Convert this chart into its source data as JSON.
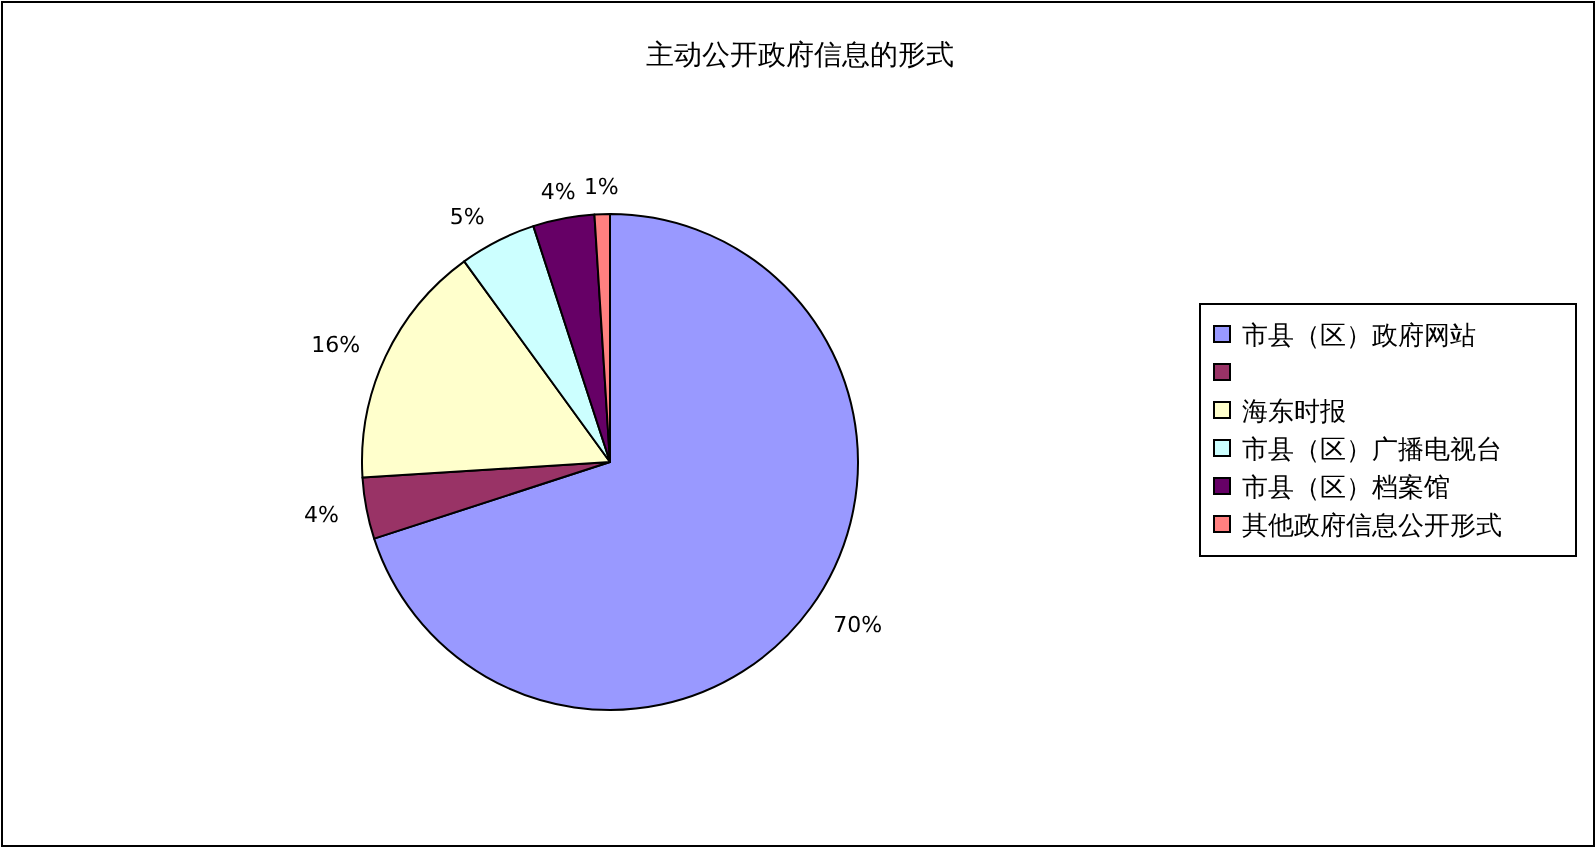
{
  "chart_data": {
    "type": "pie",
    "title": "主动公开政府信息的形式",
    "categories": [
      "市县（区）政府网站",
      null,
      "海东时报",
      "市县（区）广播电视台",
      "市县（区）档案馆",
      "其他政府信息公开形式"
    ],
    "values": [
      70,
      4,
      16,
      5,
      4,
      1
    ],
    "colors": [
      "#9999ff",
      "#993366",
      "#ffffcc",
      "#ccffff",
      "#660066",
      "#ff8080"
    ],
    "value_labels": [
      "70%",
      "4%",
      "16%",
      "5%",
      "4%",
      "1%"
    ],
    "legend": "right"
  }
}
